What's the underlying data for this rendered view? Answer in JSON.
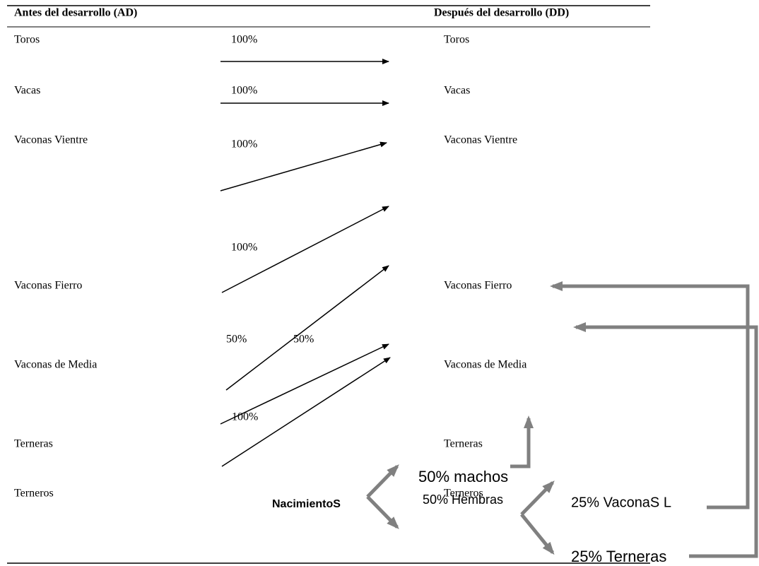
{
  "header": {
    "left": "Antes del desarrollo (AD)",
    "right": "Después del desarrollo (DD)"
  },
  "left_labels": [
    "Toros",
    "Vacas",
    "Vaconas Vientre",
    "Vaconas Fierro",
    "Vaconas de Media",
    "Terneras",
    "Terneros"
  ],
  "right_labels": [
    "Toros",
    "Vacas",
    "Vaconas Vientre",
    "Vaconas Fierro",
    "Vaconas de Media",
    "Terneras",
    "Terneros"
  ],
  "arrow_labels": [
    "100%",
    "100%",
    "100%",
    "100%",
    "50%",
    "50%",
    "100%"
  ],
  "births": {
    "label": "NacimientoS",
    "males": "50% machos",
    "females": "50% Hembras",
    "heifers_fierro": "25% VaconaS L",
    "heifers": "25% Terneras"
  }
}
